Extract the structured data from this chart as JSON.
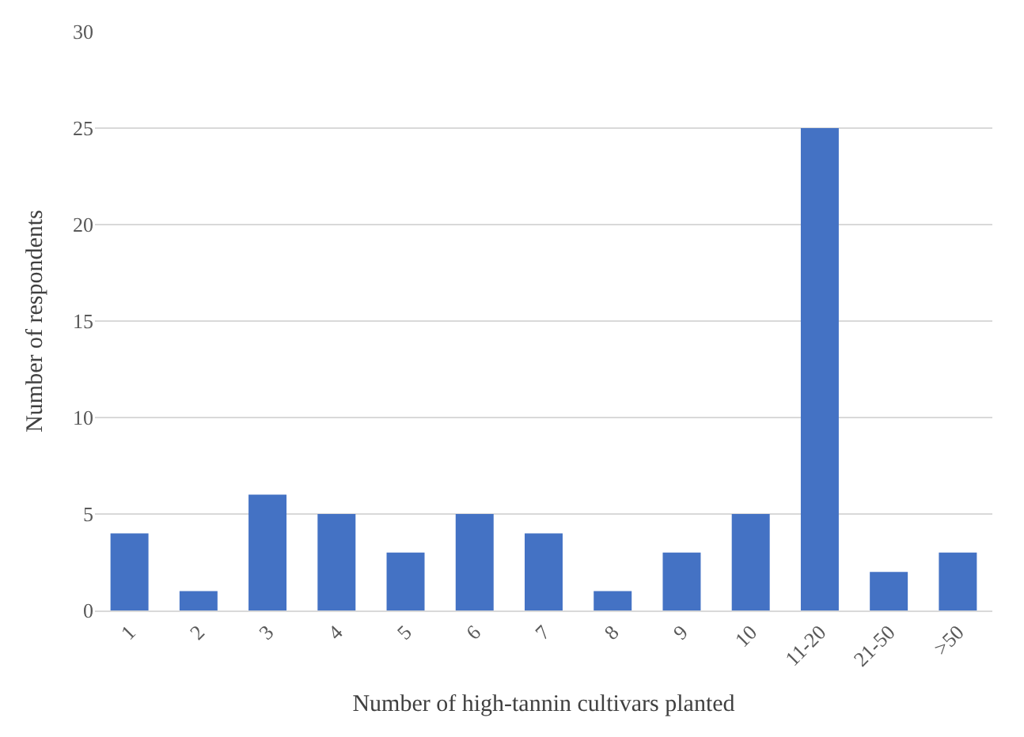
{
  "chart_data": {
    "type": "bar",
    "xlabel": "Number of high-tannin cultivars planted",
    "ylabel": "Number of respondents",
    "categories": [
      "1",
      "2",
      "3",
      "4",
      "5",
      "6",
      "7",
      "8",
      "9",
      "10",
      "11-20",
      "21-50",
      ">50"
    ],
    "values": [
      4,
      1,
      6,
      5,
      3,
      5,
      4,
      1,
      3,
      5,
      25,
      2,
      3
    ],
    "color": "#4472c4",
    "ylim": [
      0,
      30
    ],
    "yticks": [
      0,
      5,
      10,
      15,
      20,
      25,
      30
    ],
    "grid": "y"
  }
}
